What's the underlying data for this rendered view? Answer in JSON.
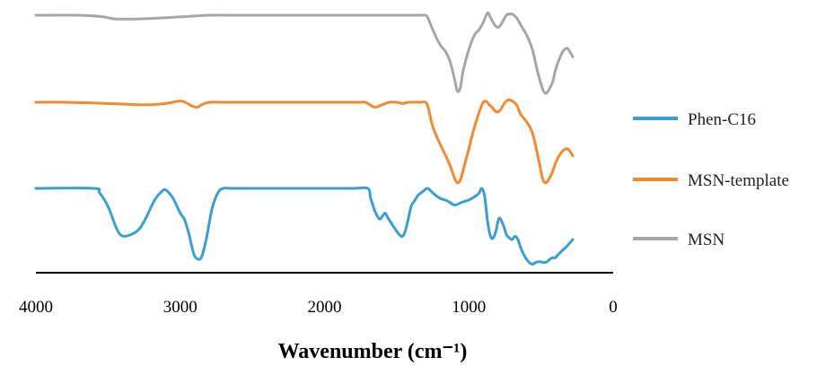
{
  "chart_data": {
    "type": "line",
    "title": "",
    "xlabel": "Wavenumber (cm⁻¹)",
    "ylabel": "",
    "xlim": [
      4000,
      0
    ],
    "x_reversed": true,
    "xticks": [
      "4000",
      "3000",
      "2000",
      "1000",
      "0"
    ],
    "grid": false,
    "legend_position": "right",
    "colors": {
      "Phen-C16": "#3a9fd6",
      "MSN-template": "#f28a30",
      "MSN": "#a6a6a6"
    },
    "series": [
      {
        "name": "MSN",
        "x": [
          4000,
          3700,
          3550,
          3450,
          3300,
          3100,
          2950,
          2800,
          2600,
          2400,
          2200,
          2000,
          1800,
          1600,
          1400,
          1340,
          1300,
          1280,
          1250,
          1200,
          1160,
          1130,
          1100,
          1080,
          1060,
          1040,
          1000,
          960,
          930,
          900,
          870,
          850,
          820,
          800,
          780,
          760,
          740,
          720,
          700,
          670,
          640,
          620,
          600,
          560,
          520,
          490,
          470,
          450,
          420,
          400,
          380,
          350,
          320,
          300,
          280
        ],
        "y": [
          0,
          0,
          -0.01,
          -0.03,
          -0.03,
          -0.02,
          -0.01,
          0,
          0,
          0,
          0,
          0,
          0,
          0,
          0,
          0,
          0,
          -0.03,
          -0.12,
          -0.24,
          -0.3,
          -0.38,
          -0.52,
          -0.62,
          -0.6,
          -0.46,
          -0.28,
          -0.16,
          -0.12,
          -0.06,
          0.02,
          -0.02,
          -0.08,
          -0.1,
          -0.08,
          -0.04,
          0,
          0.01,
          0.01,
          -0.02,
          -0.08,
          -0.12,
          -0.16,
          -0.28,
          -0.48,
          -0.6,
          -0.64,
          -0.62,
          -0.55,
          -0.45,
          -0.38,
          -0.3,
          -0.27,
          -0.3,
          -0.34
        ]
      },
      {
        "name": "MSN-template",
        "x": [
          4000,
          3800,
          3500,
          3300,
          3200,
          3100,
          3000,
          2950,
          2920,
          2880,
          2850,
          2800,
          2700,
          2500,
          2000,
          1800,
          1720,
          1700,
          1650,
          1600,
          1550,
          1500,
          1460,
          1420,
          1380,
          1340,
          1300,
          1280,
          1250,
          1200,
          1160,
          1130,
          1100,
          1080,
          1060,
          1040,
          1000,
          960,
          900,
          850,
          820,
          800,
          780,
          760,
          740,
          720,
          700,
          670,
          640,
          600,
          560,
          520,
          490,
          470,
          450,
          420,
          400,
          380,
          350,
          320,
          300,
          280
        ],
        "y": [
          0,
          0,
          -0.01,
          -0.02,
          -0.02,
          -0.01,
          0.01,
          -0.01,
          -0.03,
          -0.04,
          -0.02,
          0,
          0,
          0,
          0,
          0,
          0,
          -0.01,
          -0.04,
          -0.02,
          0,
          0,
          -0.01,
          0,
          0,
          0,
          0,
          -0.05,
          -0.2,
          -0.34,
          -0.44,
          -0.52,
          -0.62,
          -0.66,
          -0.64,
          -0.56,
          -0.38,
          -0.2,
          0,
          -0.03,
          -0.07,
          -0.08,
          -0.06,
          -0.02,
          0.01,
          0.02,
          0.01,
          -0.02,
          -0.1,
          -0.16,
          -0.25,
          -0.45,
          -0.62,
          -0.66,
          -0.64,
          -0.57,
          -0.5,
          -0.45,
          -0.4,
          -0.38,
          -0.4,
          -0.44
        ]
      },
      {
        "name": "Phen-C16",
        "x": [
          4000,
          3600,
          3560,
          3500,
          3450,
          3420,
          3380,
          3300,
          3250,
          3180,
          3130,
          3100,
          3050,
          3000,
          2970,
          2940,
          2920,
          2900,
          2870,
          2850,
          2820,
          2780,
          2740,
          2700,
          2600,
          2000,
          1800,
          1700,
          1680,
          1650,
          1620,
          1600,
          1580,
          1560,
          1530,
          1500,
          1470,
          1450,
          1430,
          1400,
          1380,
          1350,
          1320,
          1290,
          1270,
          1240,
          1200,
          1150,
          1100,
          1050,
          1000,
          960,
          930,
          910,
          890,
          870,
          850,
          830,
          810,
          790,
          760,
          740,
          720,
          700,
          680,
          660,
          640,
          620,
          600,
          580,
          560,
          540,
          520,
          500,
          480,
          460,
          440,
          420,
          400,
          380,
          350,
          320,
          300,
          280
        ],
        "y": [
          0,
          0,
          -0.05,
          -0.22,
          -0.45,
          -0.55,
          -0.58,
          -0.52,
          -0.4,
          -0.15,
          -0.04,
          -0.02,
          -0.12,
          -0.3,
          -0.38,
          -0.55,
          -0.7,
          -0.82,
          -0.86,
          -0.82,
          -0.62,
          -0.25,
          -0.06,
          0,
          0,
          0,
          0,
          0,
          -0.12,
          -0.28,
          -0.37,
          -0.34,
          -0.3,
          -0.36,
          -0.44,
          -0.52,
          -0.58,
          -0.56,
          -0.45,
          -0.22,
          -0.16,
          -0.08,
          -0.04,
          0,
          -0.02,
          -0.07,
          -0.12,
          -0.15,
          -0.2,
          -0.17,
          -0.14,
          -0.1,
          -0.06,
          0,
          -0.1,
          -0.4,
          -0.58,
          -0.6,
          -0.5,
          -0.36,
          -0.45,
          -0.56,
          -0.6,
          -0.62,
          -0.58,
          -0.62,
          -0.72,
          -0.8,
          -0.86,
          -0.9,
          -0.92,
          -0.9,
          -0.89,
          -0.89,
          -0.9,
          -0.89,
          -0.86,
          -0.84,
          -0.84,
          -0.8,
          -0.75,
          -0.7,
          -0.66,
          -0.62
        ]
      }
    ]
  }
}
